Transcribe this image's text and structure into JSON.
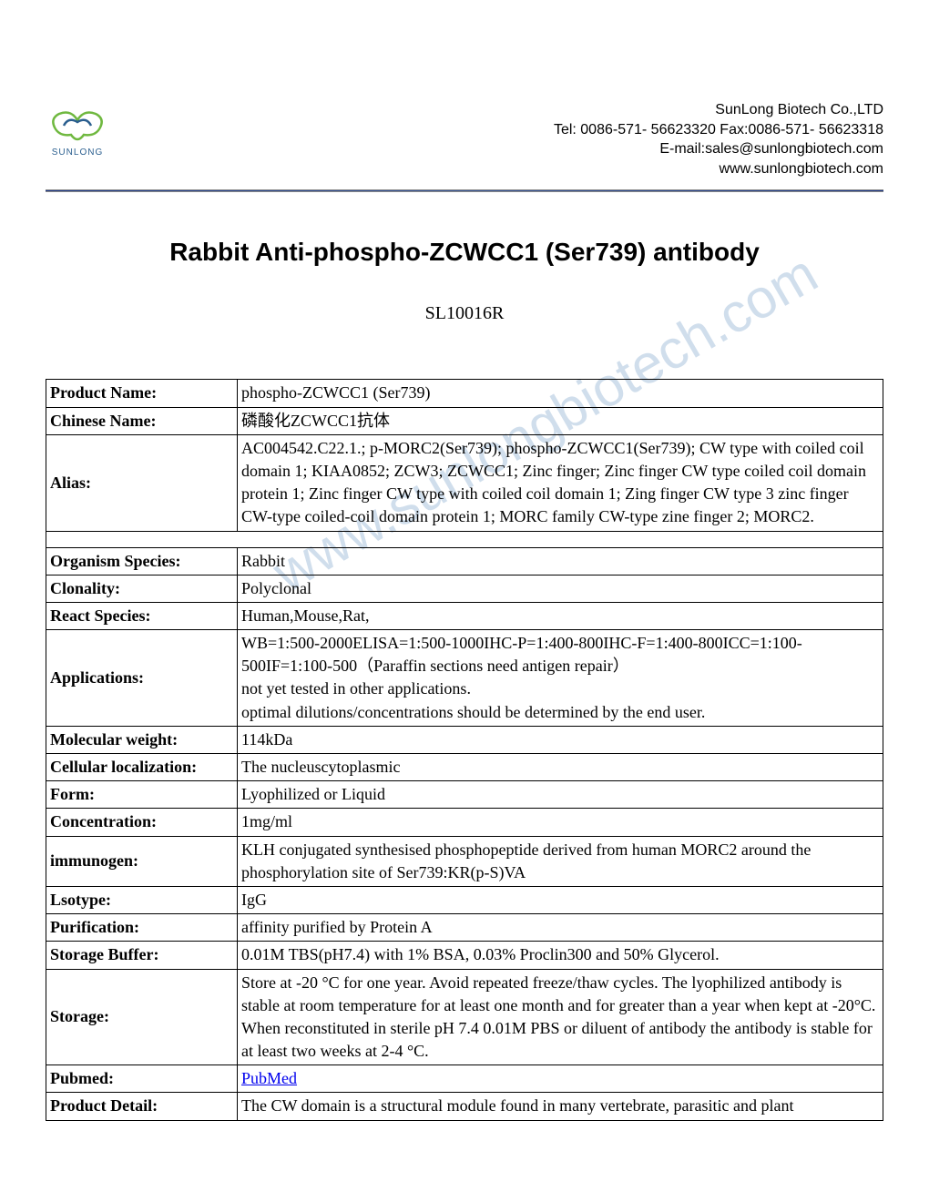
{
  "header": {
    "logo_label": "SUNLONG",
    "company_name": "SunLong Biotech Co.,LTD",
    "tel_fax": "Tel: 0086-571- 56623320 Fax:0086-571- 56623318",
    "email": "E-mail:sales@sunlongbiotech.com",
    "website": "www.sunlongbiotech.com"
  },
  "title": "Rabbit Anti-phospho-ZCWCC1 (Ser739) antibody",
  "product_code": "SL10016R",
  "watermark": "www.sunlongbiotech.com",
  "table": {
    "rows": [
      {
        "label": "Product Name:",
        "value": "phospho-ZCWCC1 (Ser739)"
      },
      {
        "label": "Chinese Name:",
        "value": "磷酸化ZCWCC1抗体"
      },
      {
        "label": "Alias:",
        "value": "AC004542.C22.1.; p-MORC2(Ser739); phospho-ZCWCC1(Ser739); CW type with coiled coil domain 1; KIAA0852; ZCW3; ZCWCC1; Zinc finger; Zinc finger CW type coiled coil domain protein 1; Zinc finger CW type with coiled coil domain 1; Zing finger CW type 3 zinc finger CW-type coiled-coil domain protein 1; MORC family CW-type zine finger 2; MORC2."
      },
      {
        "empty": true
      },
      {
        "label": "Organism Species:",
        "value": "Rabbit"
      },
      {
        "label": "Clonality:",
        "value": "Polyclonal"
      },
      {
        "label": "React Species:",
        "value": "Human,Mouse,Rat,"
      },
      {
        "label": "Applications:",
        "value": "WB=1:500-2000ELISA=1:500-1000IHC-P=1:400-800IHC-F=1:400-800ICC=1:100-500IF=1:100-500（Paraffin sections need antigen repair）\nnot yet tested in other applications.\noptimal dilutions/concentrations should be determined by the end user."
      },
      {
        "label": "Molecular weight:",
        "value": "114kDa"
      },
      {
        "label": "Cellular localization:",
        "value": "The nucleuscytoplasmic"
      },
      {
        "label": "Form:",
        "value": "Lyophilized or Liquid"
      },
      {
        "label": "Concentration:",
        "value": "1mg/ml"
      },
      {
        "label": "immunogen:",
        "value": "KLH conjugated synthesised phosphopeptide derived from human MORC2 around the phosphorylation site of Ser739:KR(p-S)VA"
      },
      {
        "label": "Lsotype:",
        "value": "IgG"
      },
      {
        "label": "Purification:",
        "value": "affinity purified by Protein A"
      },
      {
        "label": "Storage Buffer:",
        "value": "0.01M TBS(pH7.4) with 1% BSA, 0.03% Proclin300 and 50% Glycerol."
      },
      {
        "label": "Storage:",
        "value": "Store at -20 °C for one year. Avoid repeated freeze/thaw cycles. The lyophilized antibody is stable at room temperature for at least one month and for greater than a year when kept at -20°C. When reconstituted in sterile pH 7.4 0.01M PBS or diluent of antibody the antibody is stable for at least two weeks at 2-4 °C."
      },
      {
        "label": "Pubmed:",
        "value": "PubMed",
        "link": true
      },
      {
        "label": "Product Detail:",
        "value": "The CW domain is a structural module found in many vertebrate, parasitic and plant"
      }
    ]
  },
  "colors": {
    "logo_green": "#6fb83f",
    "logo_blue": "#2b5f8f",
    "divider": "#1e3a8a",
    "link": "#0000ee",
    "watermark": "rgba(120,160,200,0.35)",
    "text": "#000000"
  }
}
